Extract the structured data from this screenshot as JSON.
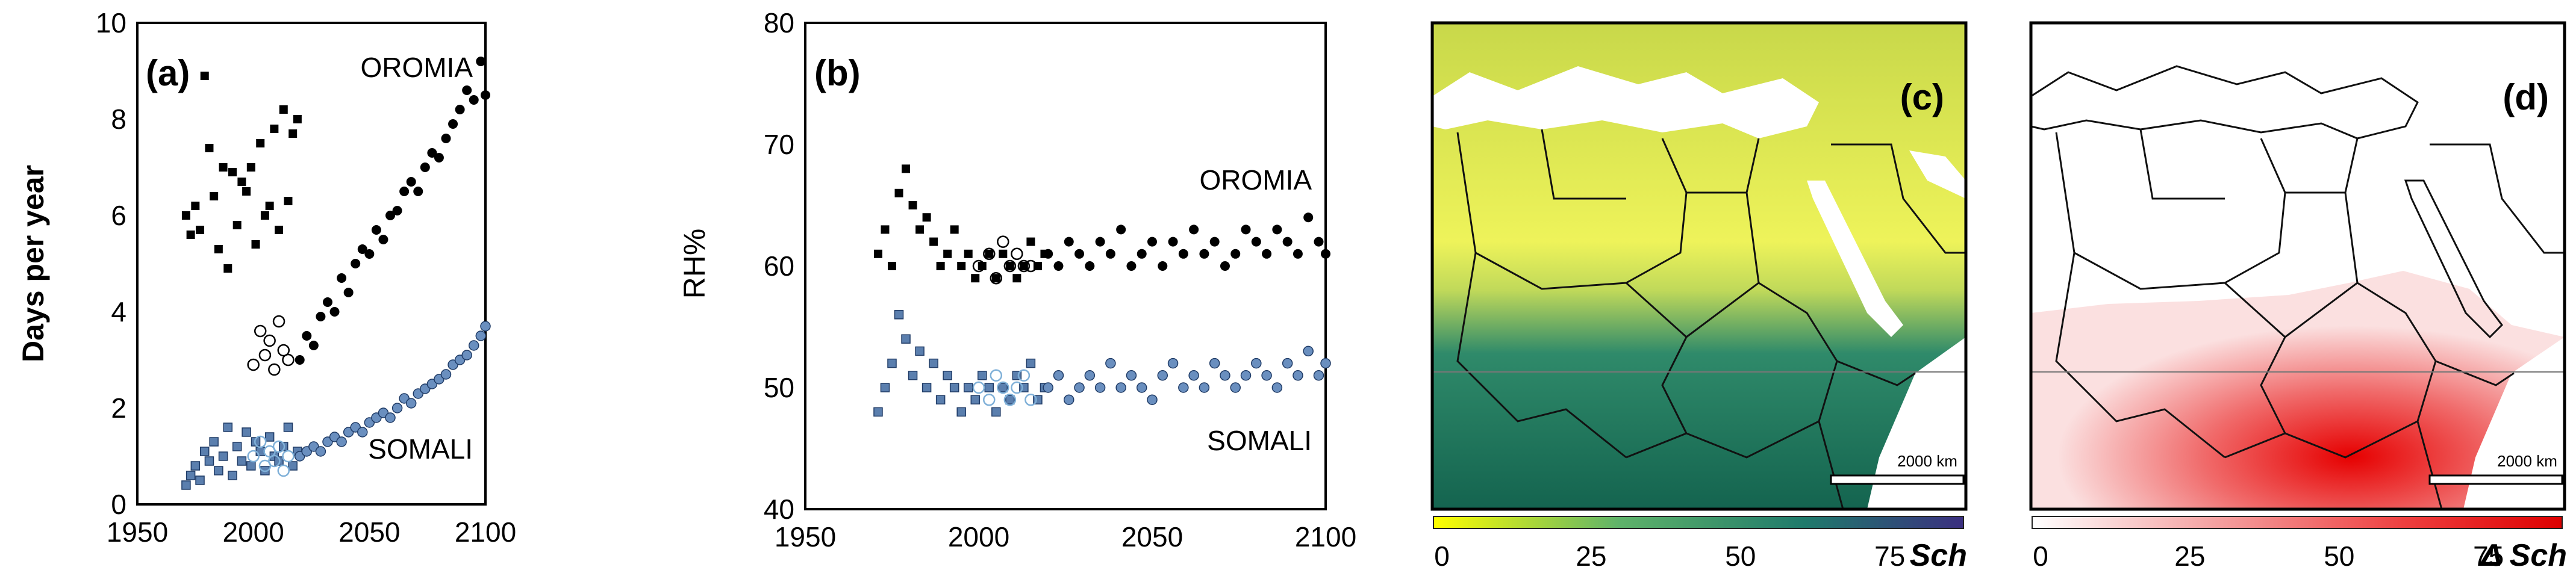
{
  "chart_data": [
    {
      "panel": "(a)",
      "type": "scatter",
      "xlim": [
        1950,
        2100
      ],
      "ylim": [
        0,
        10
      ],
      "xticks": [
        "1950",
        "2000",
        "2050",
        "2100"
      ],
      "yticks": [
        "0",
        "2",
        "4",
        "6",
        "8",
        "10"
      ],
      "ylabel": "Days per year",
      "annotations": [
        "OROMIA",
        "SOMALI"
      ],
      "series": [
        {
          "marker": "square",
          "color": "#000000",
          "x": [
            1971,
            1973,
            1975,
            1977,
            1979,
            1981,
            1983,
            1985,
            1987,
            1989,
            1991,
            1993,
            1995,
            1997,
            1999,
            2001,
            2003,
            2005,
            2007,
            2009,
            2011,
            2013,
            2015,
            2017,
            2019
          ],
          "y": [
            6.0,
            5.6,
            6.2,
            5.7,
            8.9,
            7.4,
            6.4,
            5.3,
            7.0,
            4.9,
            6.9,
            5.8,
            6.7,
            6.5,
            7.0,
            5.4,
            7.5,
            6.0,
            6.2,
            7.8,
            5.7,
            8.2,
            6.3,
            7.7,
            8.0
          ]
        },
        {
          "marker": "open-circle",
          "color": "#000000",
          "x": [
            2000,
            2003,
            2005,
            2007,
            2009,
            2011,
            2013,
            2015
          ],
          "y": [
            2.9,
            3.6,
            3.1,
            3.4,
            2.8,
            3.8,
            3.2,
            3.0
          ]
        },
        {
          "marker": "circle",
          "color": "#000000",
          "x": [
            2020,
            2023,
            2026,
            2029,
            2032,
            2035,
            2038,
            2041,
            2044,
            2047,
            2050,
            2053,
            2056,
            2059,
            2062,
            2065,
            2068,
            2071,
            2074,
            2077,
            2080,
            2083,
            2086,
            2089,
            2092,
            2095,
            2098,
            2100
          ],
          "y": [
            3.0,
            3.5,
            3.3,
            3.9,
            4.2,
            4.0,
            4.7,
            4.4,
            5.0,
            5.3,
            5.2,
            5.7,
            5.5,
            6.0,
            6.1,
            6.5,
            6.7,
            6.5,
            7.0,
            7.3,
            7.2,
            7.6,
            7.9,
            8.2,
            8.6,
            8.4,
            9.2,
            8.5
          ]
        },
        {
          "marker": "square",
          "color": "#5b7fae",
          "x": [
            1971,
            1973,
            1975,
            1977,
            1979,
            1981,
            1983,
            1985,
            1987,
            1989,
            1991,
            1993,
            1995,
            1997,
            1999,
            2001,
            2003,
            2005,
            2007,
            2009,
            2011,
            2013,
            2015,
            2017,
            2019
          ],
          "y": [
            0.4,
            0.6,
            0.8,
            0.5,
            1.1,
            0.9,
            1.3,
            0.7,
            1.0,
            1.6,
            0.6,
            1.2,
            0.9,
            1.5,
            0.8,
            1.3,
            1.1,
            0.7,
            1.4,
            1.0,
            0.9,
            1.2,
            1.6,
            0.8,
            1.1
          ]
        },
        {
          "marker": "open-circle",
          "color": "#7fb0d8",
          "x": [
            2000,
            2003,
            2005,
            2007,
            2009,
            2011,
            2013,
            2015
          ],
          "y": [
            1.0,
            1.3,
            0.8,
            1.1,
            0.9,
            1.2,
            0.7,
            1.0
          ]
        },
        {
          "marker": "circle",
          "color": "#6a8fbf",
          "x": [
            2020,
            2023,
            2026,
            2029,
            2032,
            2035,
            2038,
            2041,
            2044,
            2047,
            2050,
            2053,
            2056,
            2059,
            2062,
            2065,
            2068,
            2071,
            2074,
            2077,
            2080,
            2083,
            2086,
            2089,
            2092,
            2095,
            2098,
            2100
          ],
          "y": [
            1.0,
            1.1,
            1.2,
            1.1,
            1.3,
            1.4,
            1.3,
            1.5,
            1.6,
            1.5,
            1.7,
            1.8,
            1.9,
            1.8,
            2.0,
            2.2,
            2.1,
            2.3,
            2.4,
            2.5,
            2.6,
            2.7,
            2.9,
            3.0,
            3.1,
            3.3,
            3.5,
            3.7
          ]
        }
      ]
    },
    {
      "panel": "(b)",
      "type": "scatter",
      "xlim": [
        1950,
        2100
      ],
      "ylim": [
        40,
        80
      ],
      "xticks": [
        "1950",
        "2000",
        "2050",
        "2100"
      ],
      "yticks": [
        "40",
        "50",
        "60",
        "70",
        "80"
      ],
      "ylabel": "RH%",
      "annotations": [
        "OROMIA",
        "SOMALI"
      ],
      "series": [
        {
          "marker": "square",
          "color": "#000000",
          "x": [
            1971,
            1973,
            1975,
            1977,
            1979,
            1981,
            1983,
            1985,
            1987,
            1989,
            1991,
            1993,
            1995,
            1997,
            1999,
            2001,
            2003,
            2005,
            2007,
            2009,
            2011,
            2013,
            2015,
            2017,
            2019
          ],
          "y": [
            61,
            63,
            60,
            66,
            68,
            65,
            63,
            64,
            62,
            60,
            61,
            63,
            60,
            61,
            59,
            60,
            61,
            59,
            61,
            60,
            59,
            60,
            62,
            60,
            61
          ]
        },
        {
          "marker": "open-circle",
          "color": "#000000",
          "x": [
            2000,
            2003,
            2005,
            2007,
            2009,
            2011,
            2013,
            2015
          ],
          "y": [
            60,
            61,
            59,
            62,
            60,
            61,
            60,
            60
          ]
        },
        {
          "marker": "circle",
          "color": "#000000",
          "x": [
            2020,
            2023,
            2026,
            2029,
            2032,
            2035,
            2038,
            2041,
            2044,
            2047,
            2050,
            2053,
            2056,
            2059,
            2062,
            2065,
            2068,
            2071,
            2074,
            2077,
            2080,
            2083,
            2086,
            2089,
            2092,
            2095,
            2098,
            2100
          ],
          "y": [
            61,
            60,
            62,
            61,
            60,
            62,
            61,
            63,
            60,
            61,
            62,
            60,
            62,
            61,
            63,
            61,
            62,
            60,
            61,
            63,
            62,
            61,
            63,
            62,
            61,
            64,
            62,
            61
          ]
        },
        {
          "marker": "square",
          "color": "#5b7fae",
          "x": [
            1971,
            1973,
            1975,
            1977,
            1979,
            1981,
            1983,
            1985,
            1987,
            1989,
            1991,
            1993,
            1995,
            1997,
            1999,
            2001,
            2003,
            2005,
            2007,
            2009,
            2011,
            2013,
            2015,
            2017,
            2019
          ],
          "y": [
            48,
            50,
            52,
            56,
            54,
            51,
            53,
            50,
            52,
            49,
            51,
            50,
            48,
            50,
            49,
            51,
            50,
            48,
            50,
            49,
            51,
            50,
            52,
            49,
            50
          ]
        },
        {
          "marker": "open-circle",
          "color": "#7fb0d8",
          "x": [
            2000,
            2003,
            2005,
            2007,
            2009,
            2011,
            2013,
            2015
          ],
          "y": [
            50,
            49,
            51,
            50,
            49,
            50,
            51,
            49
          ]
        },
        {
          "marker": "circle",
          "color": "#6a8fbf",
          "x": [
            2020,
            2023,
            2026,
            2029,
            2032,
            2035,
            2038,
            2041,
            2044,
            2047,
            2050,
            2053,
            2056,
            2059,
            2062,
            2065,
            2068,
            2071,
            2074,
            2077,
            2080,
            2083,
            2086,
            2089,
            2092,
            2095,
            2098,
            2100
          ],
          "y": [
            50,
            51,
            49,
            50,
            51,
            50,
            52,
            50,
            51,
            50,
            49,
            51,
            52,
            50,
            51,
            50,
            52,
            51,
            50,
            51,
            52,
            51,
            50,
            52,
            51,
            53,
            51,
            52
          ]
        }
      ]
    },
    {
      "panel": "(c)",
      "type": "heatmap",
      "scalebar": "2000 km",
      "colorbar": {
        "ticks": [
          "0",
          "25",
          "50",
          "75"
        ],
        "label": "Sch",
        "colors": [
          "#ffff00",
          "#5fb36a",
          "#1f7a6b",
          "#3b2f80"
        ]
      }
    },
    {
      "panel": "(d)",
      "type": "heatmap",
      "scalebar": "2000 km",
      "colorbar": {
        "ticks": [
          "0",
          "25",
          "50",
          "75"
        ],
        "label": "Δ Sch",
        "colors": [
          "#ffffff",
          "#f4a0a0",
          "#ee4040",
          "#dd0000"
        ]
      }
    }
  ]
}
